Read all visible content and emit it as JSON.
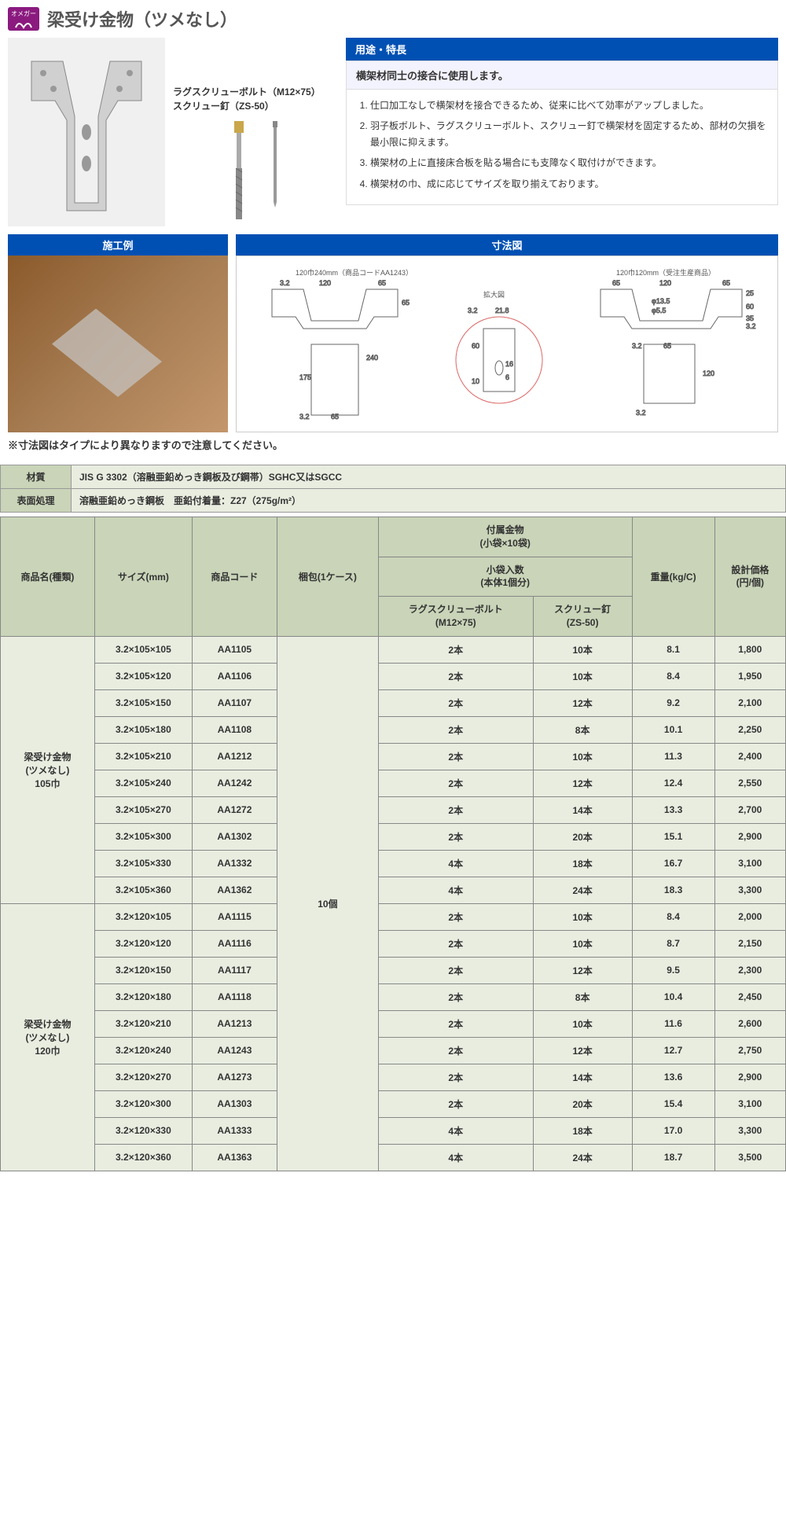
{
  "logo": {
    "text": "オメガー"
  },
  "title": "梁受け金物（ツメなし）",
  "bolt_labels": {
    "line1": "ラグスクリューボルト（M12×75）",
    "line2": "スクリュー釘（ZS-50）"
  },
  "features": {
    "header": "用途・特長",
    "intro": "横架材同士の接合に使用します。",
    "items": [
      "仕口加工なしで横架材を接合できるため、従来に比べて効率がアップしました。",
      "羽子板ボルト、ラグスクリューボルト、スクリュー釘で横架材を固定するため、部材の欠損を最小限に抑えます。",
      "横架材の上に直接床合板を貼る場合にも支障なく取付けができます。",
      "横架材の巾、成に応じてサイズを取り揃えております。"
    ]
  },
  "example_header": "施工例",
  "diagram_header": "寸法図",
  "diagram_labels": {
    "left": "120巾240mm（商品コードAA1243）",
    "right": "120巾120mm（受注生産商品）",
    "zoom": "拡大図"
  },
  "diagram_note": "※寸法図はタイプにより異なりますので注意してください。",
  "spec": {
    "material_label": "材質",
    "material_value": "JIS G 3302（溶融亜鉛めっき鋼板及び鋼帯）SGHC又はSGCC",
    "surface_label": "表面処理",
    "surface_value": "溶融亜鉛めっき鋼板　亜鉛付着量：Z27（275g/m²）"
  },
  "table_headers": {
    "name": "商品名(種類)",
    "size": "サイズ(mm)",
    "code": "商品コード",
    "package": "梱包(1ケース)",
    "accessory": "付属金物\n(小袋×10袋)",
    "bag_count": "小袋入数\n(本体1個分)",
    "lag_bolt": "ラグスクリューボルト\n(M12×75)",
    "screw_nail": "スクリュー釘\n(ZS-50)",
    "weight": "重量(kg/C)",
    "price": "設計価格\n(円/個)"
  },
  "package_value": "10個",
  "groups": [
    {
      "name": "梁受け金物\n(ツメなし)\n105巾",
      "rows": [
        {
          "size": "3.2×105×105",
          "code": "AA1105",
          "bolt": "2本",
          "nail": "10本",
          "weight": "8.1",
          "price": "1,800"
        },
        {
          "size": "3.2×105×120",
          "code": "AA1106",
          "bolt": "2本",
          "nail": "10本",
          "weight": "8.4",
          "price": "1,950"
        },
        {
          "size": "3.2×105×150",
          "code": "AA1107",
          "bolt": "2本",
          "nail": "12本",
          "weight": "9.2",
          "price": "2,100"
        },
        {
          "size": "3.2×105×180",
          "code": "AA1108",
          "bolt": "2本",
          "nail": "8本",
          "weight": "10.1",
          "price": "2,250"
        },
        {
          "size": "3.2×105×210",
          "code": "AA1212",
          "bolt": "2本",
          "nail": "10本",
          "weight": "11.3",
          "price": "2,400"
        },
        {
          "size": "3.2×105×240",
          "code": "AA1242",
          "bolt": "2本",
          "nail": "12本",
          "weight": "12.4",
          "price": "2,550"
        },
        {
          "size": "3.2×105×270",
          "code": "AA1272",
          "bolt": "2本",
          "nail": "14本",
          "weight": "13.3",
          "price": "2,700"
        },
        {
          "size": "3.2×105×300",
          "code": "AA1302",
          "bolt": "2本",
          "nail": "20本",
          "weight": "15.1",
          "price": "2,900"
        },
        {
          "size": "3.2×105×330",
          "code": "AA1332",
          "bolt": "4本",
          "nail": "18本",
          "weight": "16.7",
          "price": "3,100"
        },
        {
          "size": "3.2×105×360",
          "code": "AA1362",
          "bolt": "4本",
          "nail": "24本",
          "weight": "18.3",
          "price": "3,300"
        }
      ]
    },
    {
      "name": "梁受け金物\n(ツメなし)\n120巾",
      "rows": [
        {
          "size": "3.2×120×105",
          "code": "AA1115",
          "bolt": "2本",
          "nail": "10本",
          "weight": "8.4",
          "price": "2,000"
        },
        {
          "size": "3.2×120×120",
          "code": "AA1116",
          "bolt": "2本",
          "nail": "10本",
          "weight": "8.7",
          "price": "2,150"
        },
        {
          "size": "3.2×120×150",
          "code": "AA1117",
          "bolt": "2本",
          "nail": "12本",
          "weight": "9.5",
          "price": "2,300"
        },
        {
          "size": "3.2×120×180",
          "code": "AA1118",
          "bolt": "2本",
          "nail": "8本",
          "weight": "10.4",
          "price": "2,450"
        },
        {
          "size": "3.2×120×210",
          "code": "AA1213",
          "bolt": "2本",
          "nail": "10本",
          "weight": "11.6",
          "price": "2,600"
        },
        {
          "size": "3.2×120×240",
          "code": "AA1243",
          "bolt": "2本",
          "nail": "12本",
          "weight": "12.7",
          "price": "2,750"
        },
        {
          "size": "3.2×120×270",
          "code": "AA1273",
          "bolt": "2本",
          "nail": "14本",
          "weight": "13.6",
          "price": "2,900"
        },
        {
          "size": "3.2×120×300",
          "code": "AA1303",
          "bolt": "2本",
          "nail": "20本",
          "weight": "15.4",
          "price": "3,100"
        },
        {
          "size": "3.2×120×330",
          "code": "AA1333",
          "bolt": "4本",
          "nail": "18本",
          "weight": "17.0",
          "price": "3,300"
        },
        {
          "size": "3.2×120×360",
          "code": "AA1363",
          "bolt": "4本",
          "nail": "24本",
          "weight": "18.7",
          "price": "3,500"
        }
      ]
    }
  ],
  "colors": {
    "header_blue": "#0050b3",
    "table_header_bg": "#c9d4b8",
    "table_cell_bg": "#e8ede0",
    "logo_bg": "#8b1a7f"
  }
}
